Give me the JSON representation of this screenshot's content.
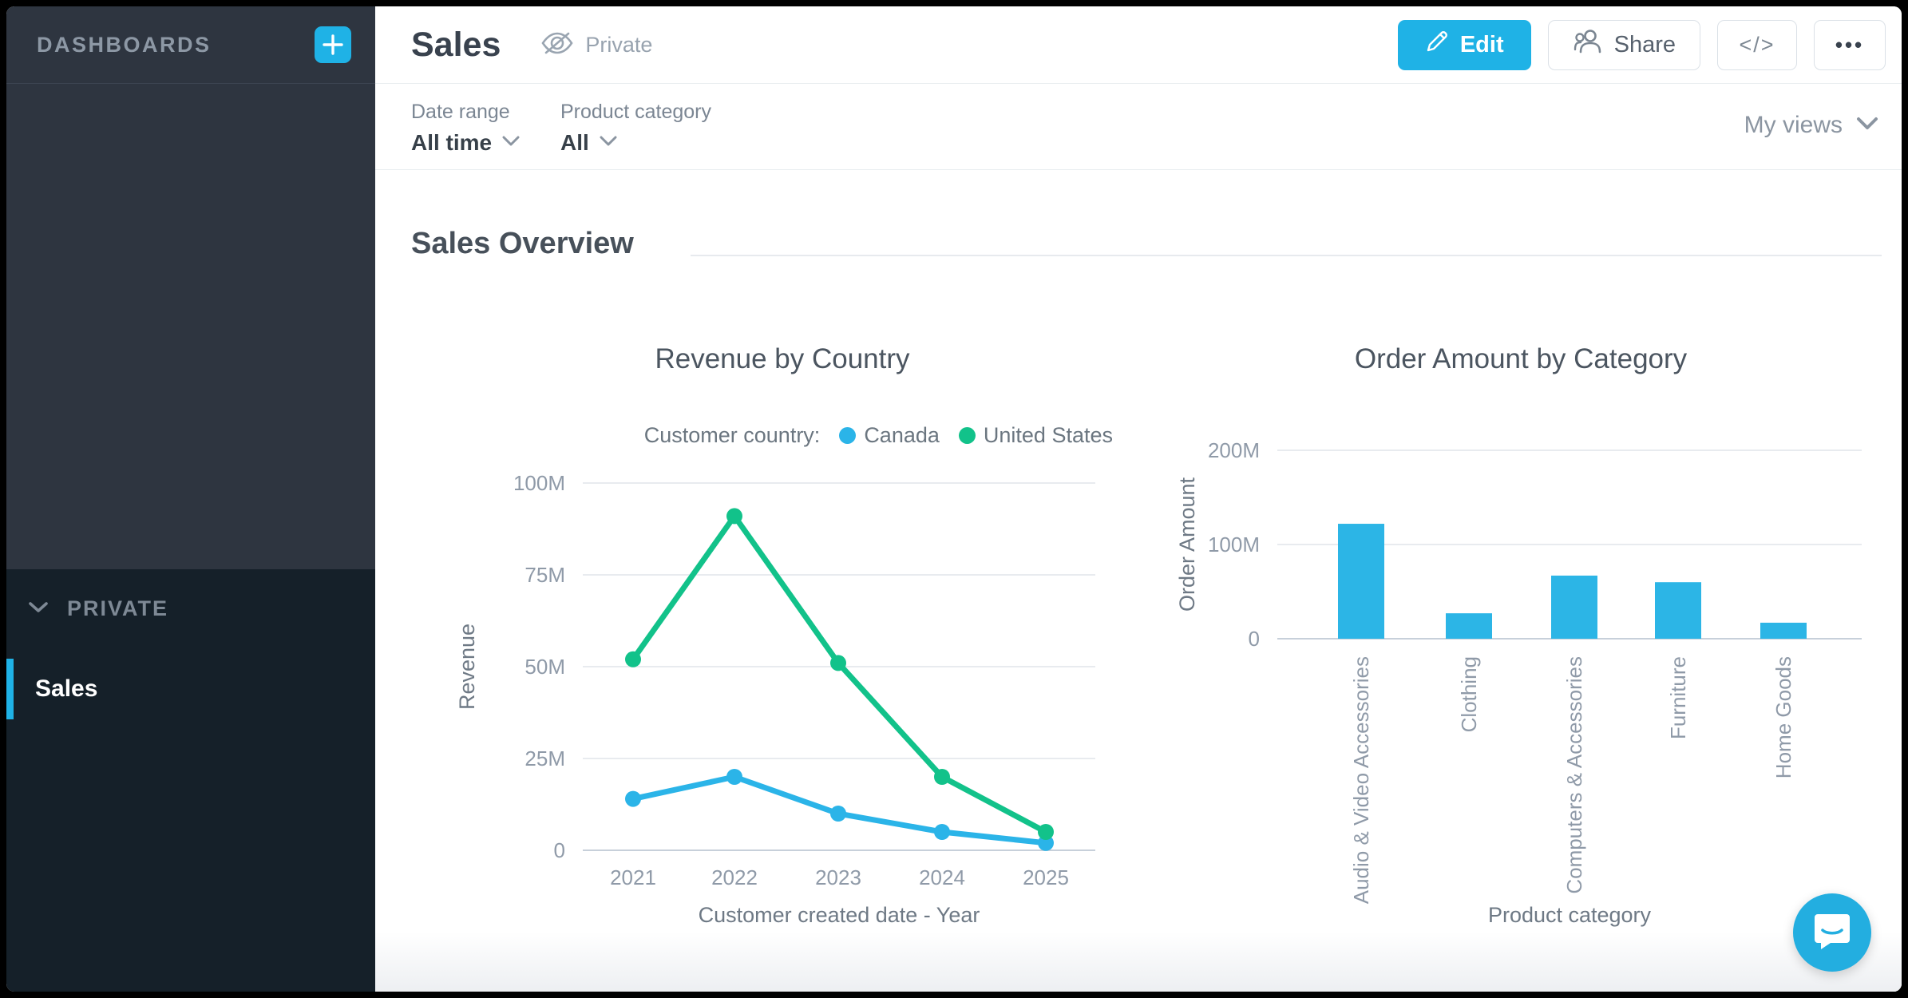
{
  "sidebar": {
    "header": "DASHBOARDS",
    "sections": [
      {
        "label": "PRIVATE",
        "items": [
          {
            "label": "Sales",
            "active": true
          }
        ]
      }
    ]
  },
  "header": {
    "title": "Sales",
    "visibility": "Private",
    "buttons": {
      "edit": "Edit",
      "share": "Share",
      "embed": "</>",
      "more": "•••"
    }
  },
  "filters": [
    {
      "label": "Date range",
      "value": "All time"
    },
    {
      "label": "Product category",
      "value": "All"
    }
  ],
  "views_dropdown": "My views",
  "section_title": "Sales Overview",
  "colors": {
    "accent": "#1fb2e6",
    "sidebar_top": "#2e3540",
    "sidebar_bottom": "#152029",
    "canada_line": "#2bb4e8",
    "us_line": "#12c28a",
    "bar": "#2cb5e6"
  },
  "chart_data": [
    {
      "type": "line",
      "title": "Revenue by Country",
      "legend_label": "Customer country:",
      "legend_position": "top-right",
      "x": [
        "2021",
        "2022",
        "2023",
        "2024",
        "2025"
      ],
      "series": [
        {
          "name": "Canada",
          "color": "#2bb4e8",
          "values": [
            14,
            20,
            10,
            5,
            2
          ]
        },
        {
          "name": "United States",
          "color": "#12c28a",
          "values": [
            52,
            91,
            51,
            20,
            5
          ]
        }
      ],
      "xlabel": "Customer created date - Year",
      "ylabel": "Revenue",
      "ylim": [
        0,
        100
      ],
      "ytick_values": [
        0,
        25,
        50,
        75,
        100
      ],
      "yticks": [
        "0",
        "25M",
        "50M",
        "75M",
        "100M"
      ],
      "grid": true
    },
    {
      "type": "bar",
      "title": "Order Amount by Category",
      "categories": [
        "Audio & Video Accessories",
        "Clothing",
        "Computers & Accessories",
        "Furniture",
        "Home Goods"
      ],
      "values": [
        122,
        27,
        67,
        60,
        17
      ],
      "bar_color": "#2cb5e6",
      "xlabel": "Product category",
      "ylabel": "Order Amount",
      "ylim": [
        0,
        200
      ],
      "ytick_values": [
        0,
        100,
        200
      ],
      "yticks": [
        "0",
        "100M",
        "200M"
      ],
      "grid": true
    }
  ]
}
